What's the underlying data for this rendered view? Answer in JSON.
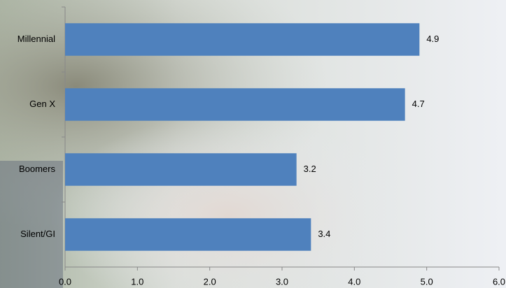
{
  "chart_data": {
    "type": "bar",
    "orientation": "horizontal",
    "categories": [
      "Millennial",
      "Gen X",
      "Boomers",
      "Silent/GI"
    ],
    "values": [
      4.9,
      4.7,
      3.2,
      3.4
    ],
    "color": "#4f81bd",
    "xlim": [
      0,
      6
    ],
    "xticks": [
      {
        "value": 0,
        "label": "0.0"
      },
      {
        "value": 1,
        "label": "1.0"
      },
      {
        "value": 2,
        "label": "2.0"
      },
      {
        "value": 3,
        "label": "3.0"
      },
      {
        "value": 4,
        "label": "4.0"
      },
      {
        "value": 5,
        "label": "5.0"
      },
      {
        "value": 6,
        "label": "6.0"
      }
    ],
    "grid": false
  }
}
